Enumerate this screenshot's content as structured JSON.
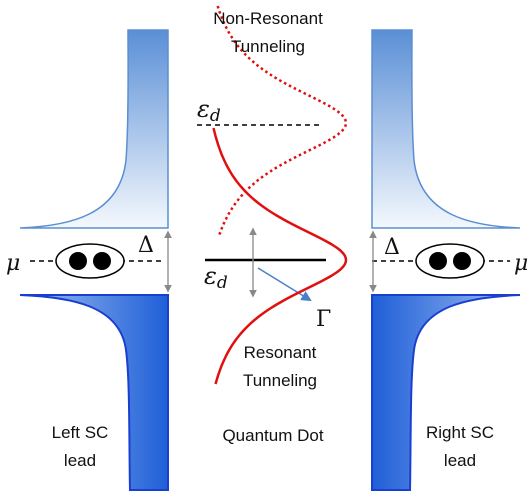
{
  "diagram": {
    "non_resonant": [
      "Non-Resonant",
      "Tunneling"
    ],
    "resonant": [
      "Resonant",
      "Tunneling"
    ],
    "level_upper": {
      "symbol": "ε",
      "subscript": "d"
    },
    "level_lower": {
      "symbol": "ε",
      "subscript": "d"
    },
    "gamma": "Γ",
    "quantum_dot": "Quantum Dot",
    "left_lead": {
      "mu": "μ",
      "gap": "Δ",
      "label": [
        "Left SC",
        "lead"
      ]
    },
    "right_lead": {
      "mu": "μ",
      "gap": "Δ",
      "label": [
        "Right SC",
        "lead"
      ]
    }
  }
}
